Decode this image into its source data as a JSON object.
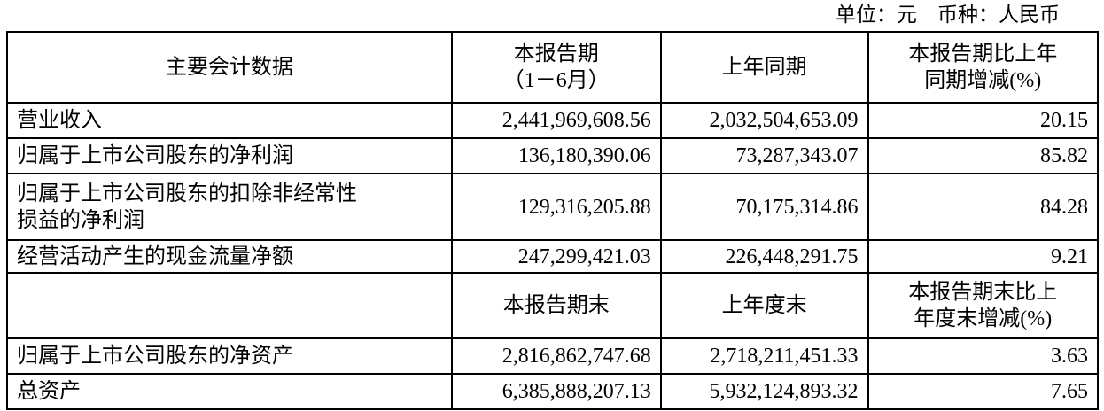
{
  "unit_line": "单位：元　币种：人民币",
  "header": {
    "col1": "主要会计数据",
    "col2_line1": "本报告期",
    "col2_line2": "（1－6月）",
    "col3": "上年同期",
    "col4_line1": "本报告期比上年",
    "col4_line2": "同期增减(%)"
  },
  "rows_period": [
    {
      "label": "营业收入",
      "current": "2,441,969,608.56",
      "prior": "2,032,504,653.09",
      "change": "20.15"
    },
    {
      "label": "归属于上市公司股东的净利润",
      "current": "136,180,390.06",
      "prior": "73,287,343.07",
      "change": "85.82"
    },
    {
      "label_line1": "归属于上市公司股东的扣除非经常性",
      "label_line2": "损益的净利润",
      "current": "129,316,205.88",
      "prior": "70,175,314.86",
      "change": "84.28"
    },
    {
      "label": "经营活动产生的现金流量净额",
      "current": "247,299,421.03",
      "prior": "226,448,291.75",
      "change": "9.21"
    }
  ],
  "subheader": {
    "col2": "本报告期末",
    "col3": "上年度末",
    "col4_line1": "本报告期末比上",
    "col4_line2": "年度末增减(%)"
  },
  "rows_end": [
    {
      "label": "归属于上市公司股东的净资产",
      "current": "2,816,862,747.68",
      "prior": "2,718,211,451.33",
      "change": "3.63"
    },
    {
      "label": "总资产",
      "current": "6,385,888,207.13",
      "prior": "5,932,124,893.32",
      "change": "7.65"
    }
  ]
}
